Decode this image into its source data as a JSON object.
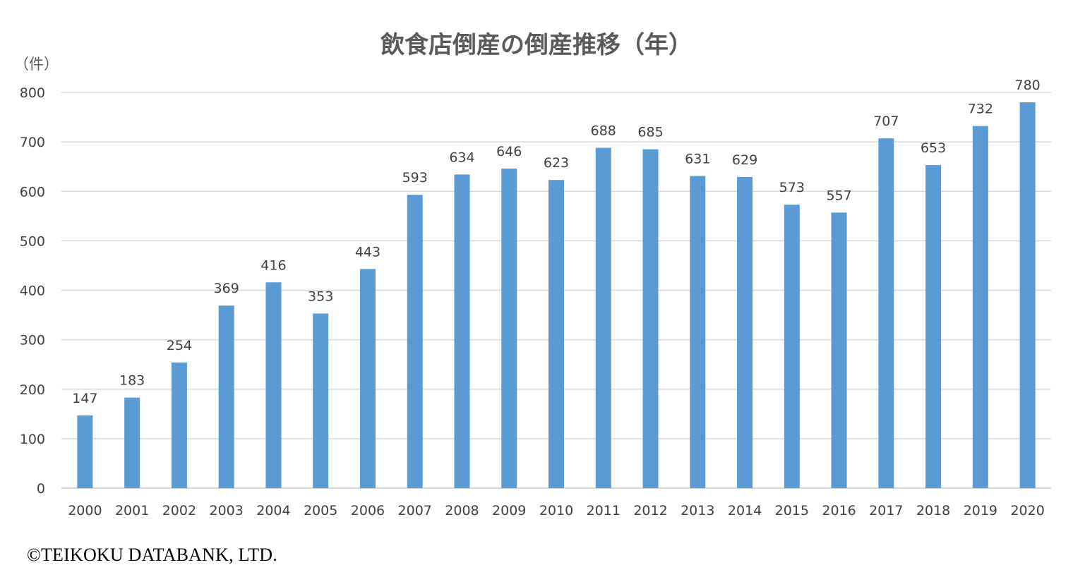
{
  "colors": {
    "bar": "#5b9bd5",
    "grid": "#d9d9d9",
    "text": "#404040",
    "title": "#595959"
  },
  "chart_data": {
    "type": "bar",
    "title": "飲食店倒産の倒産推移（年）",
    "ylabel": "（件）",
    "xlabel": "",
    "ylim": [
      0,
      800
    ],
    "yticks": [
      0,
      100,
      200,
      300,
      400,
      500,
      600,
      700,
      800
    ],
    "grid": true,
    "legend": "none",
    "categories": [
      "2000",
      "2001",
      "2002",
      "2003",
      "2004",
      "2005",
      "2006",
      "2007",
      "2008",
      "2009",
      "2010",
      "2011",
      "2012",
      "2013",
      "2014",
      "2015",
      "2016",
      "2017",
      "2018",
      "2019",
      "2020"
    ],
    "values": [
      147,
      183,
      254,
      369,
      416,
      353,
      443,
      593,
      634,
      646,
      623,
      688,
      685,
      631,
      629,
      573,
      557,
      707,
      653,
      732,
      780
    ]
  },
  "footer": {
    "copyright": "©TEIKOKU DATABANK, LTD."
  }
}
